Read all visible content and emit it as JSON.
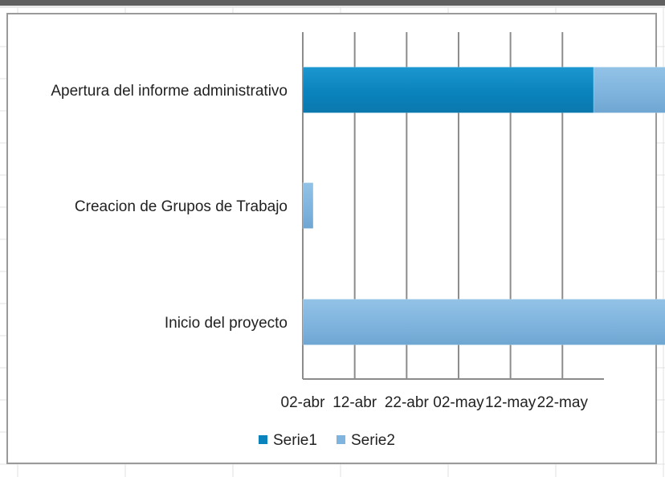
{
  "chart_data": {
    "type": "bar",
    "orientation": "horizontal",
    "stacked": true,
    "categories": [
      "Apertura del informe administrativo",
      "Creacion de Grupos de Trabajo",
      "Inicio del proyecto"
    ],
    "series": [
      {
        "name": "Serie1",
        "color": "#0a83bd",
        "values": [
          56,
          0,
          0
        ]
      },
      {
        "name": "Serie2",
        "color": "#7fb4de",
        "values": [
          14,
          2,
          116
        ]
      }
    ],
    "x_ticks": [
      "02-abr",
      "12-abr",
      "22-abr",
      "02-may",
      "12-may",
      "22-may"
    ],
    "x_tick_step_days": 10,
    "xlim_days": [
      0,
      58
    ],
    "grid": true,
    "legend": "bottom"
  }
}
